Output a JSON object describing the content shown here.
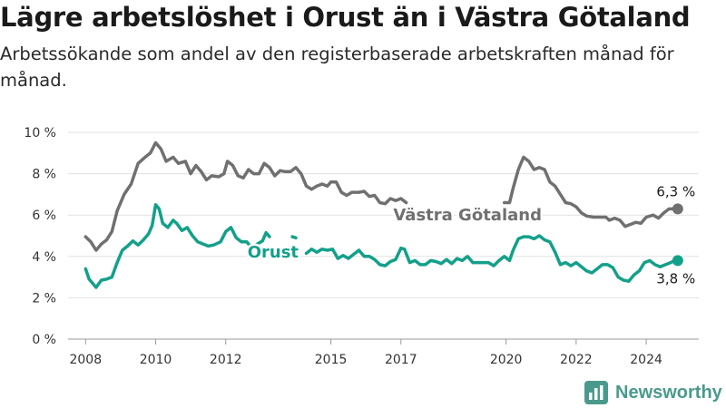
{
  "header": {
    "title": "Lägre arbetslöshet i Orust än i Västra Götaland",
    "subtitle": "Arbetssökande som andel av den registerbaserade arbetskraften månad för månad."
  },
  "brand": {
    "name": "Newsworthy",
    "icon": "bar-chart-logo-icon",
    "color": "#4a9a8c"
  },
  "chart_data": {
    "type": "line",
    "title": "Lägre arbetslöshet i Orust än i Västra Götaland",
    "subtitle": "Arbetssökande som andel av den registerbaserade arbetskraften månad för månad.",
    "xlabel": "",
    "ylabel": "",
    "ylim": [
      0,
      10
    ],
    "xlim": [
      2007.5,
      2025.5
    ],
    "grid": true,
    "legend": "inline labels",
    "y_ticks": [
      {
        "value": 0,
        "label": "0 %"
      },
      {
        "value": 2,
        "label": "2 %"
      },
      {
        "value": 4,
        "label": "4 %"
      },
      {
        "value": 6,
        "label": "6 %"
      },
      {
        "value": 8,
        "label": "8 %"
      },
      {
        "value": 10,
        "label": "10 %"
      }
    ],
    "x_ticks": [
      {
        "value": 2008,
        "label": "2008"
      },
      {
        "value": 2010,
        "label": "2010"
      },
      {
        "value": 2012,
        "label": "2012"
      },
      {
        "value": 2015,
        "label": "2015"
      },
      {
        "value": 2017,
        "label": "2017"
      },
      {
        "value": 2020,
        "label": "2020"
      },
      {
        "value": 2022,
        "label": "2022"
      },
      {
        "value": 2024,
        "label": "2024"
      }
    ],
    "series": [
      {
        "name": "Västra Götaland",
        "color": "#707070",
        "end_label": "6,3 %",
        "segments": [
          [
            [
              2008.0,
              4.95
            ],
            [
              2008.15,
              4.7
            ],
            [
              2008.3,
              4.3
            ],
            [
              2008.45,
              4.6
            ],
            [
              2008.6,
              4.8
            ],
            [
              2008.75,
              5.2
            ],
            [
              2008.9,
              6.2
            ],
            [
              2009.1,
              7.0
            ],
            [
              2009.3,
              7.5
            ],
            [
              2009.5,
              8.5
            ],
            [
              2009.7,
              8.8
            ],
            [
              2009.85,
              9.0
            ],
            [
              2010.0,
              9.5
            ],
            [
              2010.15,
              9.2
            ],
            [
              2010.3,
              8.6
            ],
            [
              2010.5,
              8.8
            ],
            [
              2010.65,
              8.5
            ],
            [
              2010.85,
              8.6
            ],
            [
              2011.0,
              8.0
            ],
            [
              2011.15,
              8.4
            ],
            [
              2011.3,
              8.1
            ],
            [
              2011.45,
              7.7
            ],
            [
              2011.6,
              7.9
            ],
            [
              2011.8,
              7.85
            ],
            [
              2011.95,
              8.0
            ],
            [
              2012.05,
              8.6
            ],
            [
              2012.2,
              8.4
            ],
            [
              2012.35,
              7.9
            ],
            [
              2012.5,
              7.8
            ],
            [
              2012.65,
              8.2
            ],
            [
              2012.8,
              8.0
            ],
            [
              2012.95,
              8.0
            ],
            [
              2013.1,
              8.5
            ],
            [
              2013.25,
              8.3
            ],
            [
              2013.4,
              7.9
            ],
            [
              2013.55,
              8.15
            ],
            [
              2013.7,
              8.1
            ],
            [
              2013.85,
              8.1
            ],
            [
              2014.0,
              8.3
            ],
            [
              2014.15,
              8.0
            ],
            [
              2014.3,
              7.4
            ],
            [
              2014.45,
              7.25
            ],
            [
              2014.6,
              7.4
            ],
            [
              2014.75,
              7.5
            ],
            [
              2014.9,
              7.4
            ],
            [
              2015.0,
              7.6
            ],
            [
              2015.15,
              7.6
            ],
            [
              2015.3,
              7.1
            ],
            [
              2015.45,
              6.95
            ],
            [
              2015.6,
              7.1
            ],
            [
              2015.8,
              7.1
            ],
            [
              2015.95,
              7.15
            ],
            [
              2016.1,
              6.9
            ],
            [
              2016.25,
              6.95
            ],
            [
              2016.4,
              6.6
            ],
            [
              2016.55,
              6.55
            ],
            [
              2016.7,
              6.8
            ],
            [
              2016.85,
              6.7
            ],
            [
              2017.0,
              6.8
            ],
            [
              2017.15,
              6.6
            ]
          ],
          [
            [
              2019.95,
              6.6
            ],
            [
              2020.1,
              6.6
            ],
            [
              2020.2,
              7.3
            ],
            [
              2020.35,
              8.2
            ],
            [
              2020.5,
              8.8
            ],
            [
              2020.65,
              8.6
            ],
            [
              2020.8,
              8.2
            ],
            [
              2020.95,
              8.3
            ],
            [
              2021.1,
              8.2
            ],
            [
              2021.25,
              7.6
            ],
            [
              2021.4,
              7.4
            ],
            [
              2021.55,
              7.0
            ],
            [
              2021.7,
              6.6
            ],
            [
              2021.85,
              6.55
            ],
            [
              2022.0,
              6.4
            ],
            [
              2022.15,
              6.1
            ],
            [
              2022.3,
              5.95
            ],
            [
              2022.5,
              5.9
            ],
            [
              2022.7,
              5.9
            ],
            [
              2022.85,
              5.9
            ],
            [
              2022.95,
              5.75
            ],
            [
              2023.1,
              5.85
            ],
            [
              2023.25,
              5.75
            ],
            [
              2023.4,
              5.45
            ],
            [
              2023.55,
              5.55
            ],
            [
              2023.7,
              5.65
            ],
            [
              2023.85,
              5.6
            ],
            [
              2024.0,
              5.9
            ],
            [
              2024.2,
              6.0
            ],
            [
              2024.35,
              5.85
            ],
            [
              2024.5,
              6.1
            ],
            [
              2024.65,
              6.3
            ],
            [
              2024.8,
              6.3
            ],
            [
              2024.9,
              6.3
            ]
          ]
        ]
      },
      {
        "name": "Orust",
        "color": "#13a08a",
        "end_label": "3,8 %",
        "segments": [
          [
            [
              2008.0,
              3.4
            ],
            [
              2008.1,
              2.9
            ],
            [
              2008.2,
              2.7
            ],
            [
              2008.3,
              2.5
            ],
            [
              2008.45,
              2.85
            ],
            [
              2008.6,
              2.9
            ],
            [
              2008.75,
              3.0
            ],
            [
              2008.9,
              3.7
            ],
            [
              2009.05,
              4.3
            ],
            [
              2009.2,
              4.5
            ],
            [
              2009.35,
              4.75
            ],
            [
              2009.5,
              4.55
            ],
            [
              2009.65,
              4.8
            ],
            [
              2009.8,
              5.1
            ],
            [
              2009.9,
              5.5
            ],
            [
              2010.0,
              6.5
            ],
            [
              2010.1,
              6.3
            ],
            [
              2010.2,
              5.6
            ],
            [
              2010.35,
              5.4
            ],
            [
              2010.5,
              5.75
            ],
            [
              2010.6,
              5.6
            ],
            [
              2010.75,
              5.25
            ],
            [
              2010.9,
              5.4
            ],
            [
              2011.05,
              5.0
            ],
            [
              2011.2,
              4.7
            ],
            [
              2011.35,
              4.6
            ],
            [
              2011.5,
              4.5
            ],
            [
              2011.65,
              4.55
            ],
            [
              2011.85,
              4.7
            ],
            [
              2012.0,
              5.2
            ],
            [
              2012.15,
              5.4
            ],
            [
              2012.3,
              4.9
            ],
            [
              2012.45,
              4.7
            ],
            [
              2012.6,
              4.7
            ],
            [
              2012.75,
              4.4
            ],
            [
              2012.9,
              4.6
            ],
            [
              2013.05,
              4.75
            ],
            [
              2013.15,
              5.15
            ],
            [
              2013.25,
              4.95
            ]
          ],
          [
            [
              2013.9,
              4.95
            ],
            [
              2014.0,
              4.9
            ]
          ],
          [
            [
              2014.3,
              4.15
            ],
            [
              2014.45,
              4.35
            ],
            [
              2014.6,
              4.2
            ],
            [
              2014.75,
              4.35
            ],
            [
              2014.9,
              4.3
            ],
            [
              2015.05,
              4.35
            ],
            [
              2015.2,
              3.9
            ],
            [
              2015.35,
              4.05
            ],
            [
              2015.5,
              3.9
            ],
            [
              2015.65,
              4.1
            ],
            [
              2015.8,
              4.3
            ],
            [
              2015.95,
              4.0
            ],
            [
              2016.1,
              4.0
            ],
            [
              2016.25,
              3.85
            ],
            [
              2016.4,
              3.6
            ],
            [
              2016.55,
              3.55
            ],
            [
              2016.7,
              3.75
            ],
            [
              2016.85,
              3.85
            ],
            [
              2017.0,
              4.4
            ],
            [
              2017.1,
              4.35
            ],
            [
              2017.25,
              3.7
            ],
            [
              2017.4,
              3.8
            ],
            [
              2017.55,
              3.6
            ],
            [
              2017.7,
              3.6
            ],
            [
              2017.85,
              3.8
            ],
            [
              2018.0,
              3.75
            ],
            [
              2018.15,
              3.65
            ],
            [
              2018.3,
              3.85
            ],
            [
              2018.45,
              3.65
            ],
            [
              2018.6,
              3.9
            ],
            [
              2018.75,
              3.8
            ],
            [
              2018.9,
              4.0
            ],
            [
              2019.05,
              3.7
            ],
            [
              2019.2,
              3.7
            ],
            [
              2019.35,
              3.7
            ],
            [
              2019.5,
              3.7
            ],
            [
              2019.65,
              3.55
            ],
            [
              2019.8,
              3.8
            ],
            [
              2019.95,
              4.0
            ],
            [
              2020.1,
              3.8
            ],
            [
              2020.2,
              4.3
            ],
            [
              2020.35,
              4.85
            ],
            [
              2020.5,
              4.95
            ],
            [
              2020.65,
              4.95
            ],
            [
              2020.8,
              4.85
            ],
            [
              2020.95,
              5.0
            ],
            [
              2021.1,
              4.8
            ],
            [
              2021.25,
              4.7
            ],
            [
              2021.4,
              4.2
            ],
            [
              2021.55,
              3.6
            ],
            [
              2021.7,
              3.7
            ],
            [
              2021.85,
              3.55
            ],
            [
              2022.0,
              3.7
            ],
            [
              2022.15,
              3.5
            ],
            [
              2022.3,
              3.3
            ],
            [
              2022.45,
              3.2
            ],
            [
              2022.6,
              3.4
            ],
            [
              2022.75,
              3.6
            ],
            [
              2022.9,
              3.6
            ],
            [
              2023.05,
              3.45
            ],
            [
              2023.2,
              3.0
            ],
            [
              2023.35,
              2.85
            ],
            [
              2023.5,
              2.8
            ],
            [
              2023.65,
              3.1
            ],
            [
              2023.8,
              3.3
            ],
            [
              2023.95,
              3.7
            ],
            [
              2024.1,
              3.8
            ],
            [
              2024.25,
              3.6
            ],
            [
              2024.4,
              3.5
            ],
            [
              2024.55,
              3.6
            ],
            [
              2024.7,
              3.7
            ],
            [
              2024.8,
              3.8
            ],
            [
              2024.9,
              3.8
            ]
          ]
        ]
      }
    ]
  }
}
